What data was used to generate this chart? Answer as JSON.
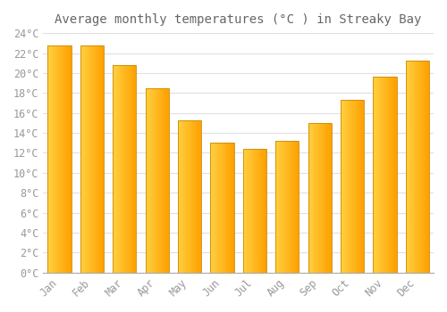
{
  "title": "Average monthly temperatures (°C ) in Streaky Bay",
  "months": [
    "Jan",
    "Feb",
    "Mar",
    "Apr",
    "May",
    "Jun",
    "Jul",
    "Aug",
    "Sep",
    "Oct",
    "Nov",
    "Dec"
  ],
  "values": [
    22.8,
    22.8,
    20.8,
    18.5,
    15.3,
    13.0,
    12.4,
    13.2,
    15.0,
    17.3,
    19.6,
    21.2
  ],
  "bar_color_left": "#FFD040",
  "bar_color_right": "#FFA000",
  "bar_edge_color": "#CC8800",
  "background_color": "#FFFFFF",
  "grid_color": "#E0E0E0",
  "text_color": "#999999",
  "title_color": "#666666",
  "spine_color": "#AAAAAA",
  "ylim": [
    0,
    24
  ],
  "ytick_step": 2,
  "title_fontsize": 10,
  "tick_fontsize": 8.5,
  "bar_width": 0.72
}
